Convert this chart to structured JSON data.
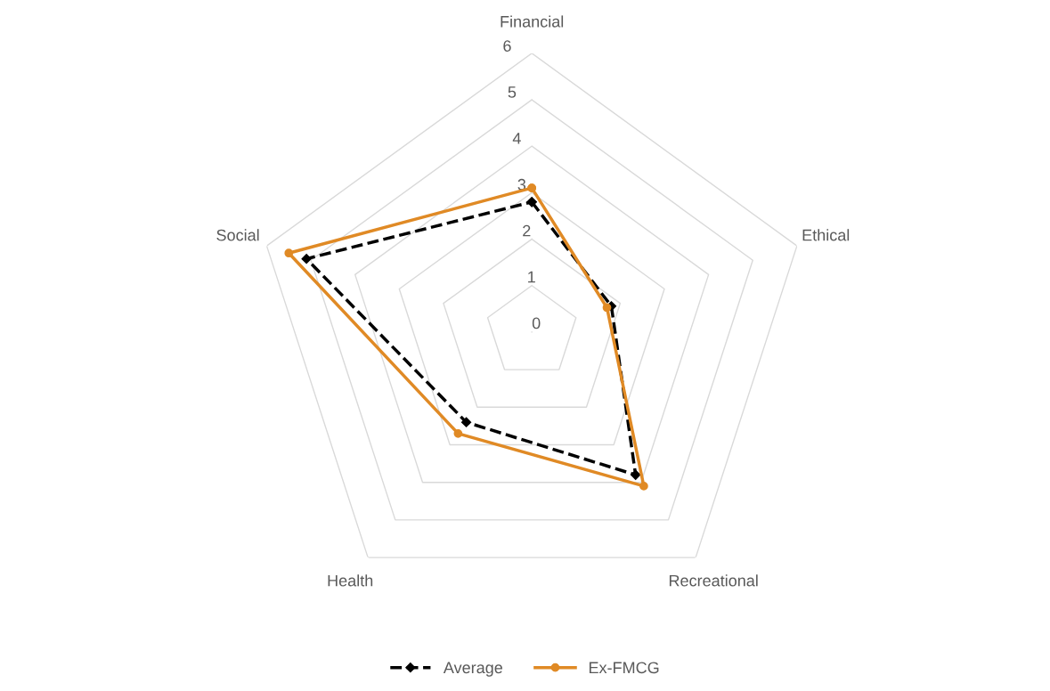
{
  "chart_data": {
    "type": "radar",
    "categories": [
      "Financial",
      "Ethical",
      "Recreational",
      "Health",
      "Social"
    ],
    "ylim": [
      0,
      6
    ],
    "yticks": [
      0,
      1,
      2,
      3,
      4,
      5,
      6
    ],
    "grid": true,
    "legend": "bottom",
    "series": [
      {
        "name": "Average",
        "color": "#000000",
        "values": [
          2.8,
          1.8,
          3.8,
          2.4,
          5.1
        ],
        "line_style": "dashed",
        "marker": "diamond"
      },
      {
        "name": "Ex-FMCG",
        "color": "#e08a25",
        "values": [
          3.1,
          1.7,
          4.1,
          2.7,
          5.5
        ],
        "line_style": "solid",
        "marker": "circle"
      }
    ]
  }
}
